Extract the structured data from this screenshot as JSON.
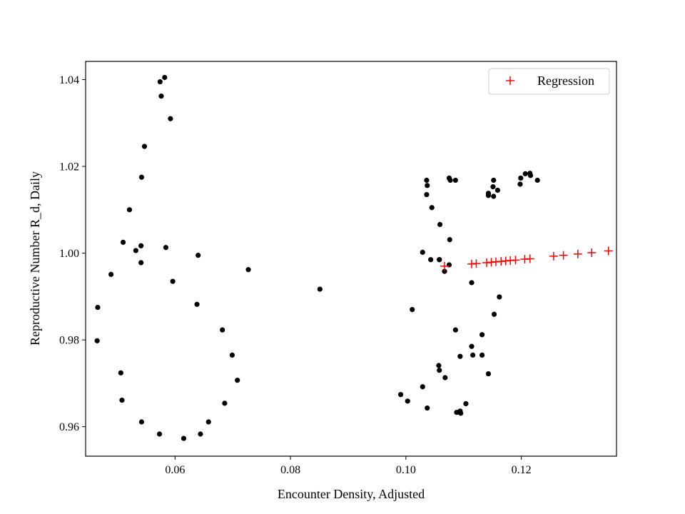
{
  "chart_data": {
    "type": "scatter",
    "title": "",
    "xlabel": "Encounter Density, Adjusted",
    "ylabel": "Reproductive Number R_d, Daily",
    "xlim": [
      0.0445,
      0.1365
    ],
    "ylim": [
      0.9532,
      1.0442
    ],
    "xticks": [
      0.06,
      0.08,
      0.1,
      0.12
    ],
    "xtick_labels": [
      "0.06",
      "0.08",
      "0.10",
      "0.12"
    ],
    "yticks": [
      0.96,
      0.98,
      1.0,
      1.02,
      1.04
    ],
    "ytick_labels": [
      "0.96",
      "0.98",
      "1.00",
      "1.02",
      "1.04"
    ],
    "grid": false,
    "legend": {
      "position": "top-right",
      "entries": [
        "Regression"
      ]
    },
    "colors": {
      "observed": "#000000",
      "regression": "#ff0000",
      "axes": "#000000"
    },
    "series": [
      {
        "marker": "dot",
        "x": [
          0.0574,
          0.0582,
          0.0576,
          0.0592,
          0.0547,
          0.0542,
          0.0521,
          0.051,
          0.0532,
          0.0541,
          0.0541,
          0.0584,
          0.0489,
          0.0596,
          0.064,
          0.0727,
          0.0851,
          0.0466,
          0.0465,
          0.0638,
          0.0682,
          0.0699,
          0.0506,
          0.0508,
          0.0708,
          0.0686,
          0.0542,
          0.0658,
          0.0573,
          0.0644,
          0.0615,
          0.1036,
          0.1045,
          0.1059,
          0.1075,
          0.1077,
          0.1086,
          0.1037,
          0.1036,
          0.1076,
          0.1058,
          0.1029,
          0.1043,
          0.1058,
          0.1067,
          0.1075,
          0.1114,
          0.1011,
          0.1143,
          0.1143,
          0.1152,
          0.1151,
          0.1159,
          0.1152,
          0.1199,
          0.1198,
          0.1207,
          0.1215,
          0.1216,
          0.1228,
          0.1114,
          0.1162,
          0.1153,
          0.1086,
          0.1132,
          0.1116,
          0.1094,
          0.1132,
          0.1057,
          0.1058,
          0.1068,
          0.1029,
          0.1143,
          0.0991,
          0.1003,
          0.1104,
          0.1037,
          0.1088,
          0.1094,
          0.1095
        ],
        "y": [
          1.0395,
          1.0405,
          1.0362,
          1.031,
          1.0246,
          1.0175,
          1.01,
          1.0025,
          1.0006,
          1.0017,
          0.9978,
          1.0013,
          0.9951,
          0.9935,
          0.9995,
          0.9962,
          0.9917,
          0.9875,
          0.9798,
          0.9882,
          0.9823,
          0.9765,
          0.9724,
          0.9661,
          0.9707,
          0.9654,
          0.9611,
          0.9611,
          0.9583,
          0.9583,
          0.9573,
          1.0135,
          1.0105,
          1.0066,
          1.0173,
          1.0168,
          1.0168,
          1.0156,
          1.0168,
          1.0031,
          0.9985,
          1.0002,
          0.9985,
          0.9985,
          0.9958,
          0.9973,
          0.9932,
          0.987,
          1.0138,
          1.0133,
          1.0168,
          1.0153,
          1.0145,
          1.0131,
          1.0173,
          1.0159,
          1.0183,
          1.0184,
          1.0179,
          1.0168,
          0.9785,
          0.9899,
          0.9859,
          0.9823,
          0.9812,
          0.9765,
          0.9762,
          0.9765,
          0.9741,
          0.973,
          0.9713,
          0.9692,
          0.9722,
          0.9674,
          0.9659,
          0.9653,
          0.9643,
          0.9633,
          0.9636,
          0.9631
        ]
      },
      {
        "name": "Regression",
        "marker": "plus",
        "x": [
          0.1067,
          0.1114,
          0.1122,
          0.114,
          0.1148,
          0.1156,
          0.1165,
          0.1173,
          0.1181,
          0.119,
          0.1206,
          0.1215,
          0.1256,
          0.1273,
          0.1298,
          0.1322,
          0.1351
        ],
        "y": [
          0.997,
          0.9975,
          0.9976,
          0.9978,
          0.9979,
          0.998,
          0.9981,
          0.9982,
          0.9983,
          0.9984,
          0.9986,
          0.9987,
          0.9993,
          0.9995,
          0.9998,
          1.0001,
          1.0005
        ]
      }
    ]
  }
}
